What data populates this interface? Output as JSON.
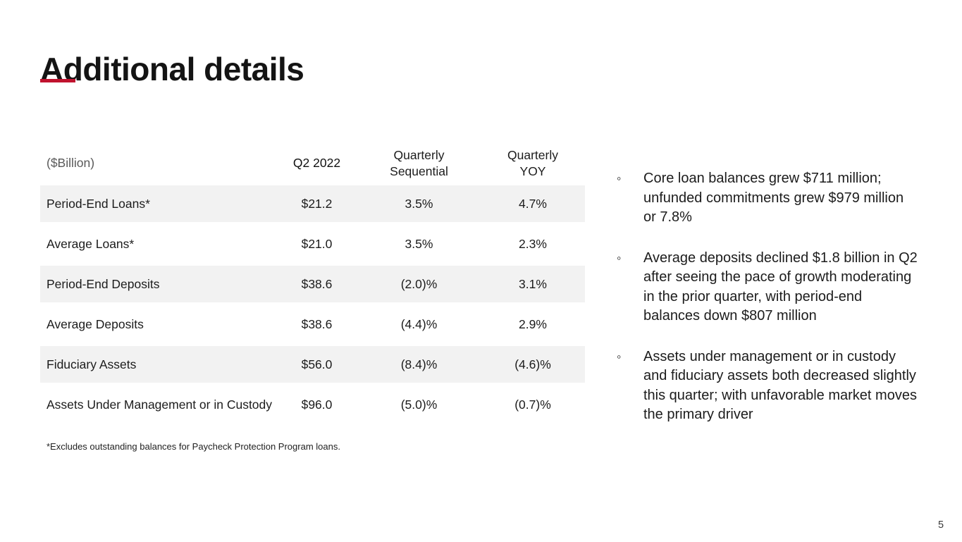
{
  "slide": {
    "title": "Additional details",
    "page_number": "5"
  },
  "colors": {
    "accent_red": "#C0122E",
    "row_shade": "#F2F2F2",
    "muted_header": "#595959"
  },
  "table": {
    "columns": [
      {
        "label": "($Billion)"
      },
      {
        "label": "Q2 2022"
      },
      {
        "line1": "Quarterly",
        "line2": "Sequential"
      },
      {
        "line1": "Quarterly",
        "line2": "YOY"
      }
    ],
    "rows": [
      {
        "label": "Period-End Loans*",
        "q2_2022": "$21.2",
        "quarterly_sequential": "3.5%",
        "quarterly_yoy": "4.7%"
      },
      {
        "label": "Average Loans*",
        "q2_2022": "$21.0",
        "quarterly_sequential": "3.5%",
        "quarterly_yoy": "2.3%"
      },
      {
        "label": "Period-End Deposits",
        "q2_2022": "$38.6",
        "quarterly_sequential": "(2.0)%",
        "quarterly_yoy": "3.1%"
      },
      {
        "label": "Average Deposits",
        "q2_2022": "$38.6",
        "quarterly_sequential": "(4.4)%",
        "quarterly_yoy": "2.9%"
      },
      {
        "label": "Fiduciary Assets",
        "q2_2022": "$56.0",
        "quarterly_sequential": "(8.4)%",
        "quarterly_yoy": "(4.6)%"
      },
      {
        "label": "Assets Under Management or in Custody",
        "q2_2022": "$96.0",
        "quarterly_sequential": "(5.0)%",
        "quarterly_yoy": "(0.7)%"
      }
    ],
    "footnote": "*Excludes outstanding balances for Paycheck Protection Program loans."
  },
  "bullets": [
    {
      "marker": "◦",
      "text": "Core loan balances grew $711 million; unfunded commitments grew $979 million or 7.8%"
    },
    {
      "marker": "◦",
      "text": "Average deposits declined $1.8 billion in Q2 after seeing the pace of growth moderating in the prior quarter, with period-end balances down $807 million"
    },
    {
      "marker": "◦",
      "text": "Assets under management or in custody and fiduciary assets both decreased slightly this quarter; with unfavorable market moves the primary driver"
    }
  ]
}
